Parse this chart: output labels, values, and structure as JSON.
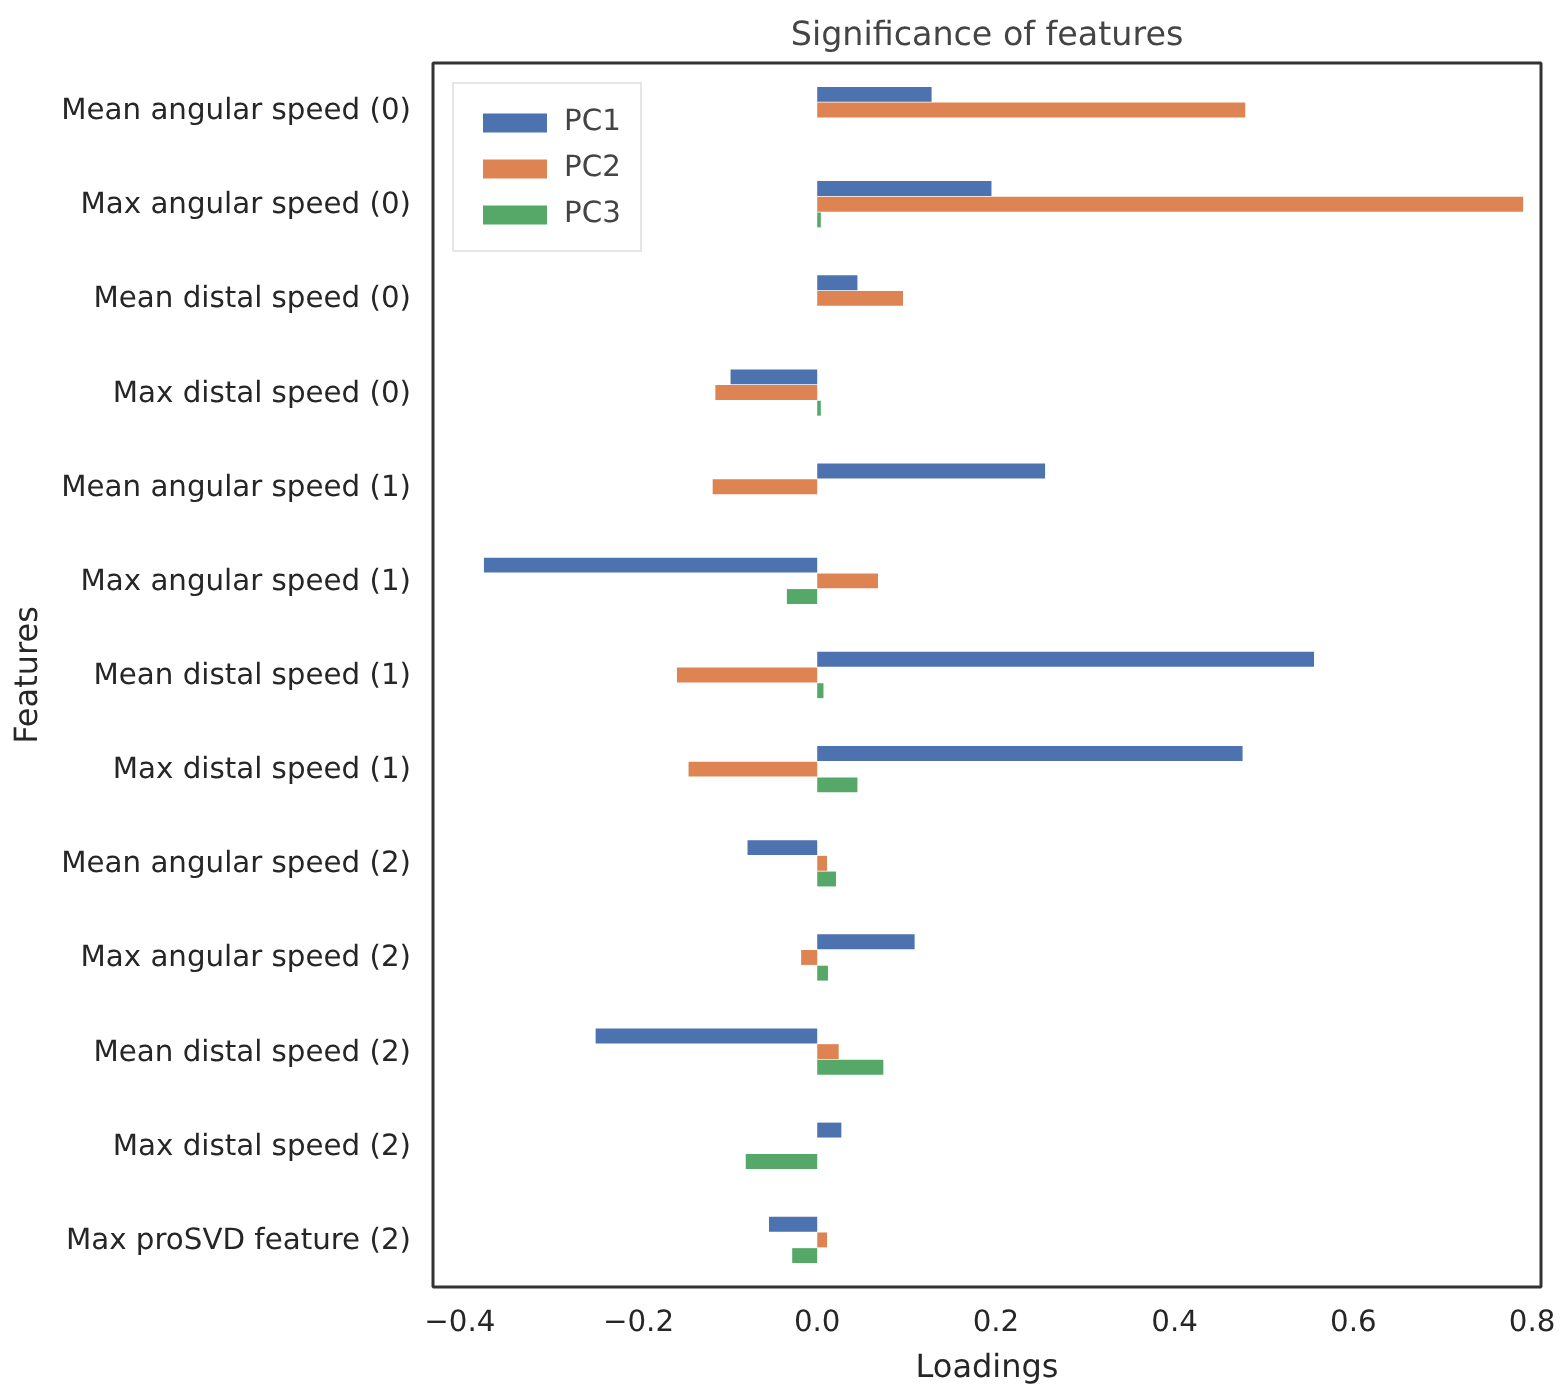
{
  "chart_data": {
    "type": "bar",
    "orientation": "horizontal",
    "title": "Significance of features",
    "xlabel": "Loadings",
    "ylabel": "Features",
    "categories": [
      "Mean angular speed (0)",
      "Max angular speed (0)",
      "Mean distal speed (0)",
      "Max distal speed (0)",
      "Mean angular speed (1)",
      "Max angular speed (1)",
      "Mean distal speed (1)",
      "Max distal speed (1)",
      "Mean angular speed (2)",
      "Max angular speed (2)",
      "Mean distal speed (2)",
      "Max distal speed (2)",
      "Max proSVD feature (2)"
    ],
    "series": [
      {
        "name": "PC1",
        "color": "#4c72b0",
        "values": [
          0.128,
          0.195,
          0.045,
          -0.097,
          0.255,
          -0.373,
          0.556,
          0.476,
          -0.078,
          0.109,
          -0.248,
          0.027,
          -0.054
        ]
      },
      {
        "name": "PC2",
        "color": "#dd8452",
        "values": [
          0.479,
          0.79,
          0.096,
          -0.114,
          -0.117,
          0.068,
          -0.157,
          -0.144,
          0.011,
          -0.018,
          0.024,
          0,
          0.011
        ]
      },
      {
        "name": "PC3",
        "color": "#55a868",
        "values": [
          0,
          0.004,
          0,
          0.004,
          0,
          -0.034,
          0.007,
          0.045,
          0.021,
          0.012,
          0.074,
          -0.08,
          -0.028
        ]
      }
    ],
    "xlim": [
      -0.43,
      0.81
    ],
    "xticks": [
      {
        "value": -0.4,
        "label": "−0.4"
      },
      {
        "value": -0.2,
        "label": "−0.2"
      },
      {
        "value": 0,
        "label": "0.0"
      },
      {
        "value": 0.2,
        "label": "0.2"
      },
      {
        "value": 0.4,
        "label": "0.4"
      },
      {
        "value": 0.6,
        "label": "0.6"
      },
      {
        "value": 0.8,
        "label": "0.8"
      }
    ],
    "grid": false,
    "legend": "top left"
  }
}
